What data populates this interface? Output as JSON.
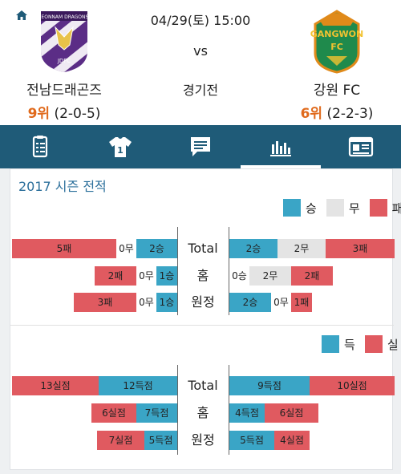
{
  "header": {
    "home_label": "홈",
    "date": "04/29(토) 15:00",
    "vs": "vs",
    "match_type": "경기전",
    "home_team": {
      "name": "전남드래곤즈",
      "rank": "9위",
      "record": "(2-0-5)",
      "logo_text": "JEONNAM DRAGONS",
      "logo_sub": "JDFC"
    },
    "away_team": {
      "name": "강원 FC",
      "rank": "6위",
      "record": "(2-2-3)",
      "logo_text": "GANGWON",
      "logo_sub": "FC"
    }
  },
  "tabs": [
    {
      "name": "lineup-list-icon",
      "active": false
    },
    {
      "name": "jersey-icon",
      "active": false,
      "number": "1"
    },
    {
      "name": "chat-icon",
      "active": false
    },
    {
      "name": "stats-chart-icon",
      "active": true
    },
    {
      "name": "news-icon",
      "active": false
    }
  ],
  "section": {
    "title": "2017 시즌 전적"
  },
  "legend1": {
    "win": "승",
    "draw": "무",
    "loss": "패"
  },
  "legend2": {
    "for": "득",
    "against": "실"
  },
  "row_labels": {
    "total": "Total",
    "home": "홈",
    "away": "원정"
  },
  "records": {
    "total": {
      "left": {
        "loss": "5패",
        "draw": "0무",
        "win": "2승"
      },
      "right": {
        "win": "2승",
        "draw": "2무",
        "loss": "3패"
      }
    },
    "home": {
      "left": {
        "loss": "2패",
        "draw": "0무",
        "win": "1승"
      },
      "right": {
        "win": "0승",
        "draw": "2무",
        "loss": "2패"
      }
    },
    "away": {
      "left": {
        "loss": "3패",
        "draw": "0무",
        "win": "1승"
      },
      "right": {
        "win": "2승",
        "draw": "0무",
        "loss": "1패"
      }
    }
  },
  "goals": {
    "total": {
      "left": {
        "against": "13실점",
        "for": "12득점"
      },
      "right": {
        "for": "9득점",
        "against": "10실점"
      }
    },
    "home": {
      "left": {
        "against": "6실점",
        "for": "7득점"
      },
      "right": {
        "for": "4득점",
        "against": "6실점"
      }
    },
    "away": {
      "left": {
        "against": "7실점",
        "for": "5득점"
      },
      "right": {
        "for": "5득점",
        "against": "4실점"
      }
    }
  },
  "colors": {
    "win": "#3aa5c6",
    "draw": "#e4e4e4",
    "loss": "#e05a60",
    "tabbar": "#1f5b78",
    "rank": "#e06a1c"
  }
}
